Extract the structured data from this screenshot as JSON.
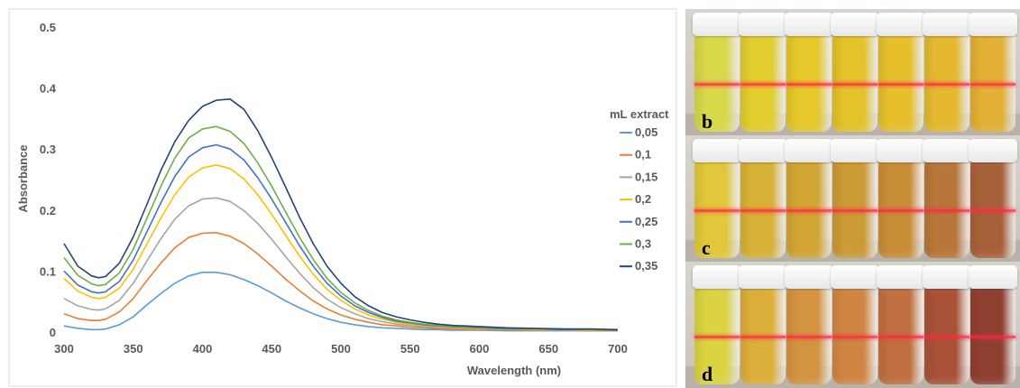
{
  "chart_data": {
    "type": "line",
    "xlabel": "Wavelength (nm)",
    "ylabel": "Absorbance",
    "xlim": [
      300,
      700
    ],
    "ylim": [
      0,
      0.5
    ],
    "xticks": [
      "300",
      "350",
      "400",
      "450",
      "500",
      "550",
      "600",
      "650",
      "700"
    ],
    "yticks": [
      "0",
      "0.1",
      "0.2",
      "0.3",
      "0.4",
      "0.5"
    ],
    "legend_title": "mL extract",
    "legend_position": "right",
    "grid": false,
    "x": [
      300,
      310,
      320,
      325,
      330,
      340,
      350,
      360,
      370,
      380,
      390,
      400,
      410,
      420,
      430,
      440,
      450,
      460,
      470,
      480,
      490,
      500,
      510,
      520,
      530,
      540,
      550,
      560,
      570,
      580,
      590,
      600,
      620,
      640,
      660,
      680,
      700
    ],
    "series": [
      {
        "name": "0,05",
        "color": "#5B9BD5",
        "values": [
          0.01,
          0.006,
          0.004,
          0.004,
          0.005,
          0.012,
          0.025,
          0.045,
          0.063,
          0.08,
          0.092,
          0.098,
          0.098,
          0.094,
          0.086,
          0.076,
          0.064,
          0.051,
          0.04,
          0.03,
          0.022,
          0.016,
          0.012,
          0.009,
          0.007,
          0.006,
          0.005,
          0.004,
          0.004,
          0.003,
          0.003,
          0.003,
          0.002,
          0.002,
          0.002,
          0.002,
          0.002
        ]
      },
      {
        "name": "0,1",
        "color": "#ED7D31",
        "values": [
          0.03,
          0.022,
          0.019,
          0.019,
          0.021,
          0.033,
          0.055,
          0.085,
          0.113,
          0.138,
          0.155,
          0.162,
          0.163,
          0.157,
          0.145,
          0.128,
          0.108,
          0.087,
          0.068,
          0.051,
          0.038,
          0.028,
          0.021,
          0.016,
          0.012,
          0.01,
          0.008,
          0.007,
          0.006,
          0.005,
          0.004,
          0.004,
          0.003,
          0.003,
          0.003,
          0.002,
          0.002
        ]
      },
      {
        "name": "0,15",
        "color": "#A5A5A5",
        "values": [
          0.055,
          0.043,
          0.037,
          0.036,
          0.038,
          0.052,
          0.08,
          0.117,
          0.153,
          0.185,
          0.207,
          0.218,
          0.22,
          0.214,
          0.199,
          0.178,
          0.152,
          0.124,
          0.097,
          0.073,
          0.054,
          0.04,
          0.03,
          0.022,
          0.017,
          0.013,
          0.011,
          0.009,
          0.008,
          0.007,
          0.006,
          0.005,
          0.004,
          0.004,
          0.003,
          0.003,
          0.003
        ]
      },
      {
        "name": "0,2",
        "color": "#FFC000",
        "values": [
          0.088,
          0.067,
          0.057,
          0.055,
          0.057,
          0.072,
          0.103,
          0.145,
          0.187,
          0.225,
          0.254,
          0.269,
          0.274,
          0.268,
          0.251,
          0.225,
          0.193,
          0.159,
          0.125,
          0.095,
          0.07,
          0.052,
          0.038,
          0.028,
          0.021,
          0.016,
          0.013,
          0.011,
          0.009,
          0.008,
          0.007,
          0.006,
          0.005,
          0.004,
          0.004,
          0.003,
          0.003
        ]
      },
      {
        "name": "0,25",
        "color": "#4472C4",
        "values": [
          0.1,
          0.077,
          0.066,
          0.064,
          0.066,
          0.083,
          0.118,
          0.165,
          0.212,
          0.255,
          0.287,
          0.302,
          0.307,
          0.3,
          0.282,
          0.253,
          0.218,
          0.18,
          0.142,
          0.108,
          0.08,
          0.059,
          0.043,
          0.032,
          0.024,
          0.018,
          0.015,
          0.012,
          0.01,
          0.009,
          0.008,
          0.007,
          0.005,
          0.005,
          0.004,
          0.004,
          0.003
        ]
      },
      {
        "name": "0,3",
        "color": "#70AD47",
        "values": [
          0.122,
          0.093,
          0.079,
          0.076,
          0.078,
          0.097,
          0.136,
          0.187,
          0.239,
          0.285,
          0.318,
          0.333,
          0.337,
          0.329,
          0.309,
          0.277,
          0.239,
          0.197,
          0.156,
          0.119,
          0.088,
          0.065,
          0.048,
          0.035,
          0.026,
          0.02,
          0.016,
          0.013,
          0.011,
          0.01,
          0.009,
          0.008,
          0.006,
          0.005,
          0.005,
          0.004,
          0.004
        ]
      },
      {
        "name": "0,35",
        "color": "#264478",
        "values": [
          0.145,
          0.108,
          0.092,
          0.089,
          0.091,
          0.113,
          0.156,
          0.21,
          0.265,
          0.312,
          0.347,
          0.37,
          0.38,
          0.382,
          0.365,
          0.33,
          0.286,
          0.238,
          0.189,
          0.145,
          0.108,
          0.08,
          0.058,
          0.043,
          0.032,
          0.025,
          0.02,
          0.016,
          0.013,
          0.011,
          0.01,
          0.009,
          0.007,
          0.006,
          0.005,
          0.005,
          0.004
        ]
      }
    ]
  },
  "photo_panels": [
    {
      "label": "b",
      "vial_colors": [
        "#d8d84a",
        "#e2ce2e",
        "#e6c82a",
        "#e4c229",
        "#e6c02c",
        "#e4b930",
        "#e2b034"
      ]
    },
    {
      "label": "c",
      "vial_colors": [
        "#e0c83a",
        "#d8b236",
        "#d2a534",
        "#cc9a36",
        "#c98d38",
        "#b8763a",
        "#a8603a"
      ]
    },
    {
      "label": "d",
      "vial_colors": [
        "#dcd342",
        "#dcae3a",
        "#d49340",
        "#cf8642",
        "#c06f40",
        "#a95238",
        "#8e3f30"
      ]
    }
  ]
}
